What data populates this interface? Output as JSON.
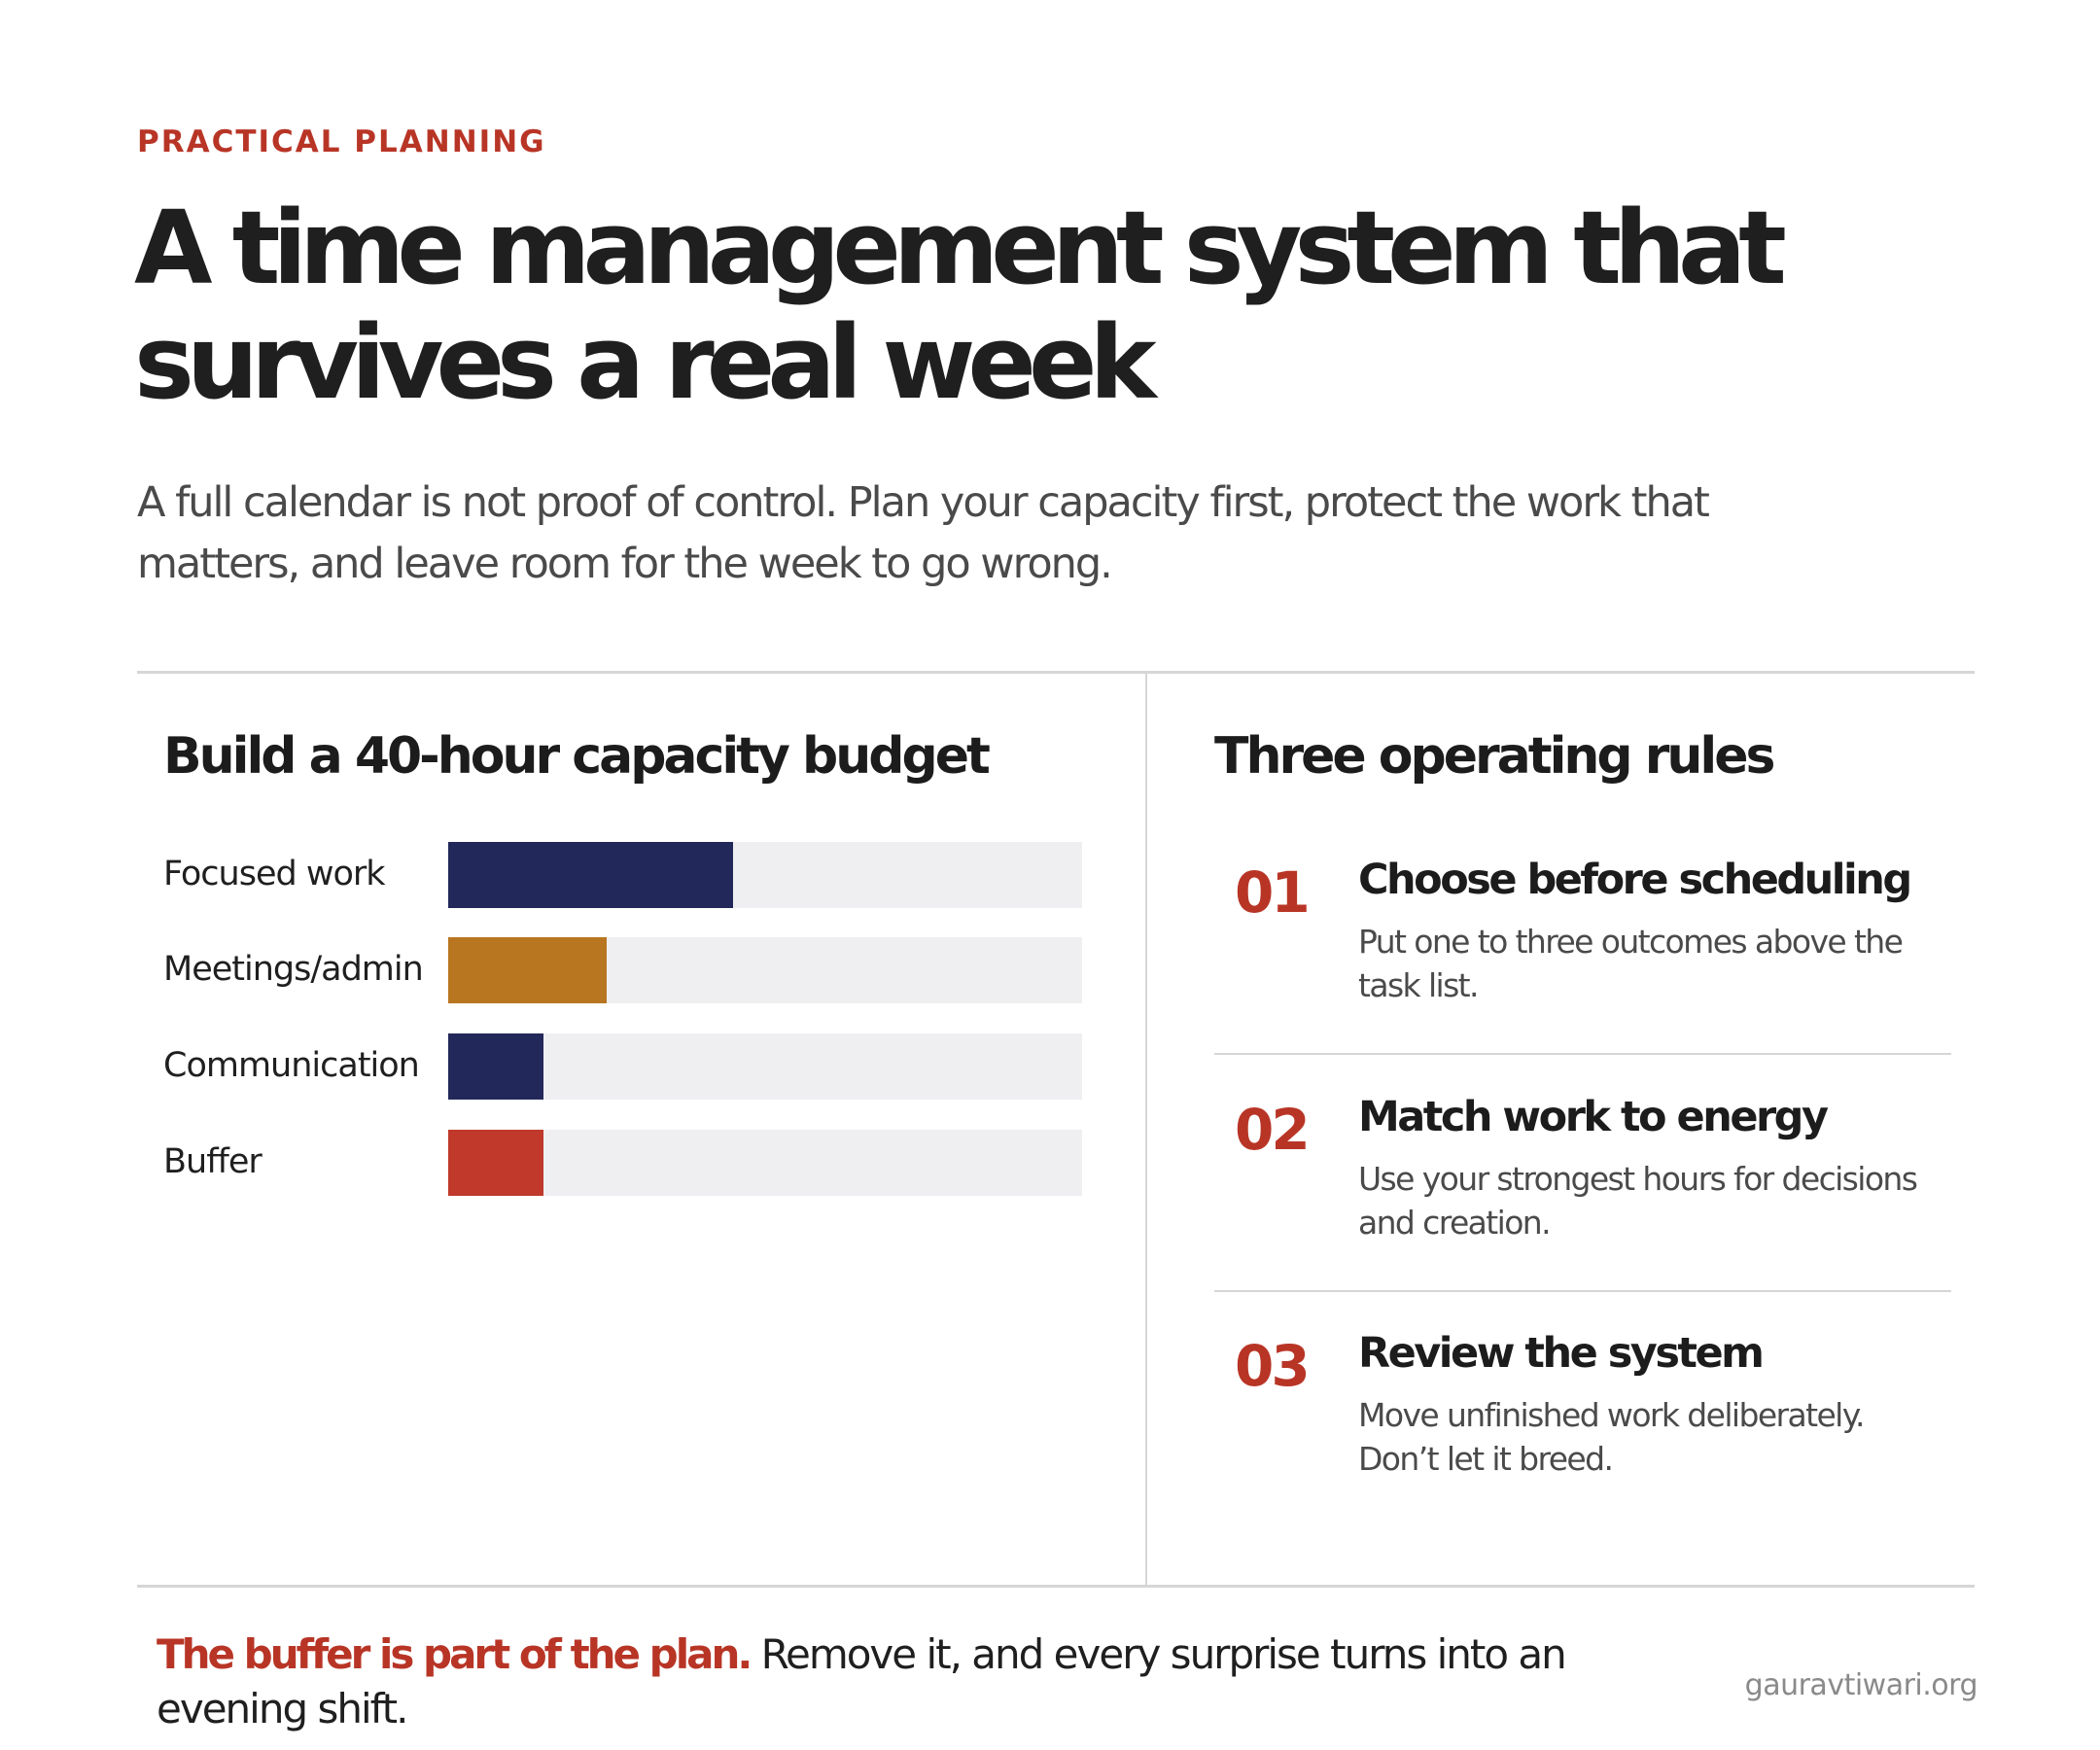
{
  "header": {
    "kicker": "PRACTICAL PLANNING",
    "title": "A time management system that survives a real week",
    "intro": "A full calendar is not proof of control. Plan your capacity first, protect the work that matters, and leave room for the week to go wrong."
  },
  "budget": {
    "heading": "Build a 40-hour capacity budget",
    "bars": [
      {
        "label": "Focused work",
        "fraction": 0.45,
        "color": "#23285a"
      },
      {
        "label": "Meetings/admin",
        "fraction": 0.25,
        "color": "#b87620"
      },
      {
        "label": "Communication",
        "fraction": 0.15,
        "color": "#23285a"
      },
      {
        "label": "Buffer",
        "fraction": 0.15,
        "color": "#c0392b"
      }
    ]
  },
  "rules": {
    "heading": "Three operating rules",
    "items": [
      {
        "num": "01",
        "title": "Choose before scheduling",
        "body": "Put one to three outcomes above the task list."
      },
      {
        "num": "02",
        "title": "Match work to energy",
        "body": "Use your strongest hours for decisions and creation."
      },
      {
        "num": "03",
        "title": "Review the system",
        "body": "Move unfinished work deliberately. Don’t let it breed."
      }
    ]
  },
  "footer": {
    "emphasis": "The buffer is part of the plan.",
    "text": " Remove it, and every surprise turns into an evening shift.",
    "site": "gauravtiwari.org"
  }
}
